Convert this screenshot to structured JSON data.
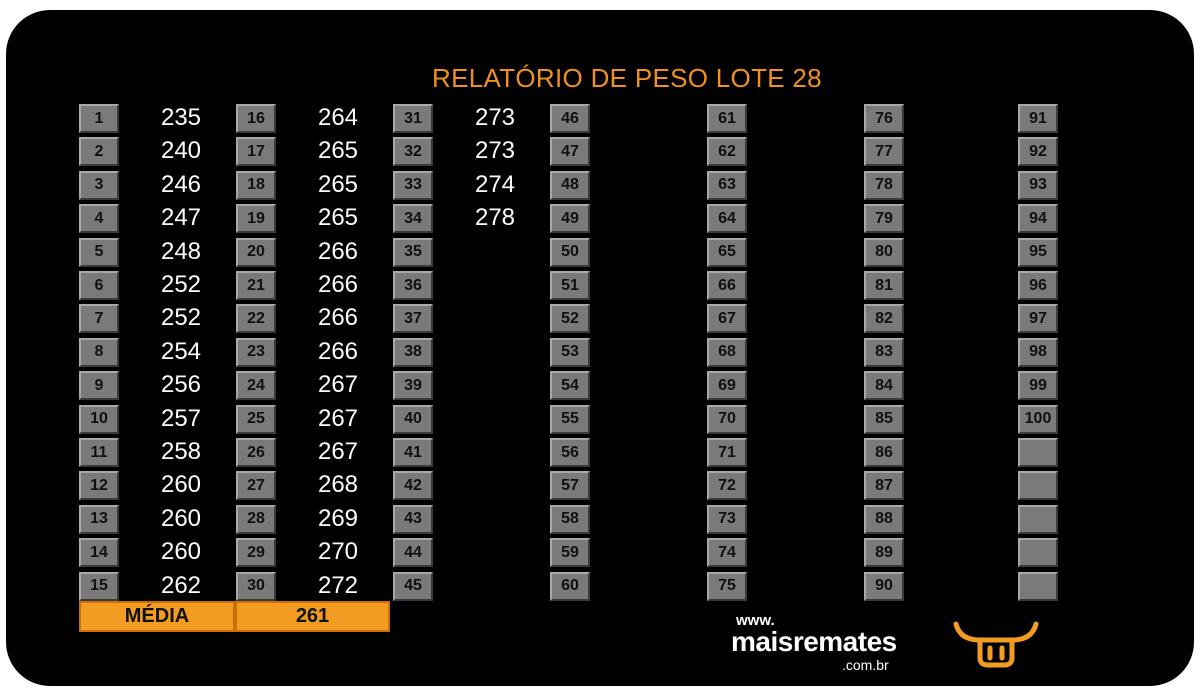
{
  "title": "RELATÓRIO DE PESO LOTE  28",
  "columns": [
    {
      "numbers": [
        "1",
        "2",
        "3",
        "4",
        "5",
        "6",
        "7",
        "8",
        "9",
        "10",
        "11",
        "12",
        "13",
        "14",
        "15"
      ],
      "weights": [
        "235",
        "240",
        "246",
        "247",
        "248",
        "252",
        "252",
        "254",
        "256",
        "257",
        "258",
        "260",
        "260",
        "260",
        "262"
      ]
    },
    {
      "numbers": [
        "16",
        "17",
        "18",
        "19",
        "20",
        "21",
        "22",
        "23",
        "24",
        "25",
        "26",
        "27",
        "28",
        "29",
        "30"
      ],
      "weights": [
        "264",
        "265",
        "265",
        "265",
        "266",
        "266",
        "266",
        "266",
        "267",
        "267",
        "267",
        "268",
        "269",
        "270",
        "272"
      ]
    },
    {
      "numbers": [
        "31",
        "32",
        "33",
        "34",
        "35",
        "36",
        "37",
        "38",
        "39",
        "40",
        "41",
        "42",
        "43",
        "44",
        "45"
      ],
      "weights": [
        "273",
        "273",
        "274",
        "278"
      ]
    },
    {
      "numbers": [
        "46",
        "47",
        "48",
        "49",
        "50",
        "51",
        "52",
        "53",
        "54",
        "55",
        "56",
        "57",
        "58",
        "59",
        "60"
      ],
      "weights": []
    },
    {
      "numbers": [
        "61",
        "62",
        "63",
        "64",
        "65",
        "66",
        "67",
        "68",
        "69",
        "70",
        "71",
        "72",
        "73",
        "74",
        "75"
      ],
      "weights": []
    },
    {
      "numbers": [
        "76",
        "77",
        "78",
        "79",
        "80",
        "81",
        "82",
        "83",
        "84",
        "85",
        "86",
        "87",
        "88",
        "89",
        "90"
      ],
      "weights": []
    },
    {
      "numbers": [
        "91",
        "92",
        "93",
        "94",
        "95",
        "96",
        "97",
        "98",
        "99",
        "100",
        "",
        "",
        "",
        "",
        ""
      ],
      "weights": []
    }
  ],
  "summary": {
    "label": "MÉDIA",
    "value": "261"
  },
  "brand": {
    "www": "www.",
    "name": "maisremates",
    "domain": ".com.br",
    "icon": "bull-head-icon"
  },
  "colors": {
    "accent": "#f0901e",
    "cell": "#7a7a7a",
    "background": "#000000"
  }
}
